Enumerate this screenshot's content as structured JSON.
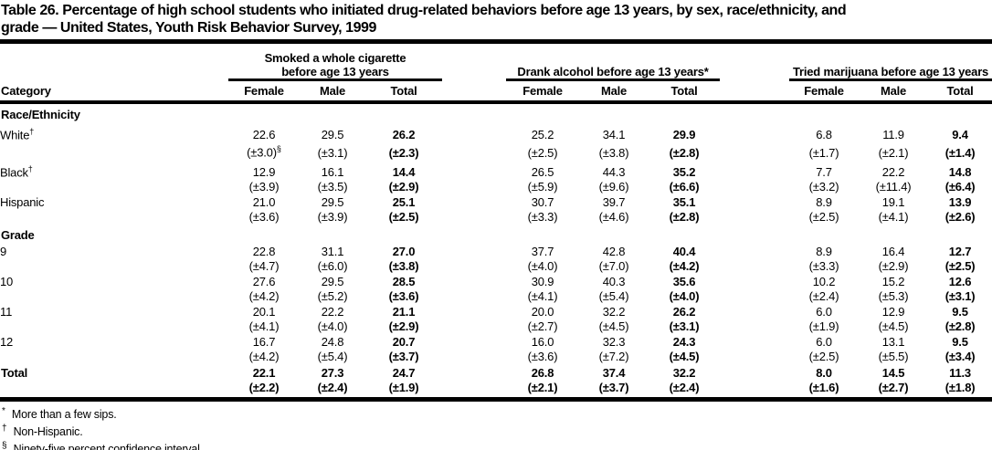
{
  "title_line1": "Table 26. Percentage of high school students who initiated drug-related behaviors before age 13 years, by sex, race/ethnicity, and",
  "title_line2": "grade — United States, Youth Risk Behavior Survey, 1999",
  "table": {
    "category_header": "Category",
    "groups": [
      {
        "label": "Smoked a whole cigarette before age 13 years"
      },
      {
        "label": "Drank alcohol before age 13 years*"
      },
      {
        "label": "Tried marijuana before age 13 years"
      }
    ],
    "sub_columns": [
      "Female",
      "Male",
      "Total"
    ],
    "sections": [
      {
        "name": "Race/Ethnicity",
        "rows": [
          {
            "label": "White",
            "sup": "†",
            "values": [
              "22.6",
              "29.5",
              "26.2",
              "25.2",
              "34.1",
              "29.9",
              "6.8",
              "11.9",
              "9.4"
            ],
            "ci": [
              "(±3.0)",
              "(±3.1)",
              "(±2.3)",
              "(±2.5)",
              "(±3.8)",
              "(±2.8)",
              "(±1.7)",
              "(±2.1)",
              "(±1.4)"
            ],
            "ci_sups": {
              "0": "§"
            }
          },
          {
            "label": "Black",
            "sup": "†",
            "values": [
              "12.9",
              "16.1",
              "14.4",
              "26.5",
              "44.3",
              "35.2",
              "7.7",
              "22.2",
              "14.8"
            ],
            "ci": [
              "(±3.9)",
              "(±3.5)",
              "(±2.9)",
              "(±5.9)",
              "(±9.6)",
              "(±6.6)",
              "(±3.2)",
              "(±11.4)",
              "(±6.4)"
            ]
          },
          {
            "label": "Hispanic",
            "values": [
              "21.0",
              "29.5",
              "25.1",
              "30.7",
              "39.7",
              "35.1",
              "8.9",
              "19.1",
              "13.9"
            ],
            "ci": [
              "(±3.6)",
              "(±3.9)",
              "(±2.5)",
              "(±3.3)",
              "(±4.6)",
              "(±2.8)",
              "(±2.5)",
              "(±4.1)",
              "(±2.6)"
            ]
          }
        ]
      },
      {
        "name": "Grade",
        "rows": [
          {
            "label": "9",
            "values": [
              "22.8",
              "31.1",
              "27.0",
              "37.7",
              "42.8",
              "40.4",
              "8.9",
              "16.4",
              "12.7"
            ],
            "ci": [
              "(±4.7)",
              "(±6.0)",
              "(±3.8)",
              "(±4.0)",
              "(±7.0)",
              "(±4.2)",
              "(±3.3)",
              "(±2.9)",
              "(±2.5)"
            ]
          },
          {
            "label": "10",
            "values": [
              "27.6",
              "29.5",
              "28.5",
              "30.9",
              "40.3",
              "35.6",
              "10.2",
              "15.2",
              "12.6"
            ],
            "ci": [
              "(±4.2)",
              "(±5.2)",
              "(±3.6)",
              "(±4.1)",
              "(±5.4)",
              "(±4.0)",
              "(±2.4)",
              "(±5.3)",
              "(±3.1)"
            ]
          },
          {
            "label": "11",
            "values": [
              "20.1",
              "22.2",
              "21.1",
              "20.0",
              "32.2",
              "26.2",
              "6.0",
              "12.9",
              "9.5"
            ],
            "ci": [
              "(±4.1)",
              "(±4.0)",
              "(±2.9)",
              "(±2.7)",
              "(±4.5)",
              "(±3.1)",
              "(±1.9)",
              "(±4.5)",
              "(±2.8)"
            ]
          },
          {
            "label": "12",
            "values": [
              "16.7",
              "24.8",
              "20.7",
              "16.0",
              "32.3",
              "24.3",
              "6.0",
              "13.1",
              "9.5"
            ],
            "ci": [
              "(±4.2)",
              "(±5.4)",
              "(±3.7)",
              "(±3.6)",
              "(±7.2)",
              "(±4.5)",
              "(±2.5)",
              "(±5.5)",
              "(±3.4)"
            ]
          }
        ]
      }
    ],
    "total_row": {
      "label": "Total",
      "values": [
        "22.1",
        "27.3",
        "24.7",
        "26.8",
        "37.4",
        "32.2",
        "8.0",
        "14.5",
        "11.3"
      ],
      "ci": [
        "(±2.2)",
        "(±2.4)",
        "(±1.9)",
        "(±2.1)",
        "(±3.7)",
        "(±2.4)",
        "(±1.6)",
        "(±2.7)",
        "(±1.8)"
      ]
    }
  },
  "footnotes": [
    {
      "marker": "*",
      "text": "More than a few sips."
    },
    {
      "marker": "†",
      "text": "Non-Hispanic."
    },
    {
      "marker": "§",
      "text": "Ninety-five percent confidence interval."
    }
  ]
}
